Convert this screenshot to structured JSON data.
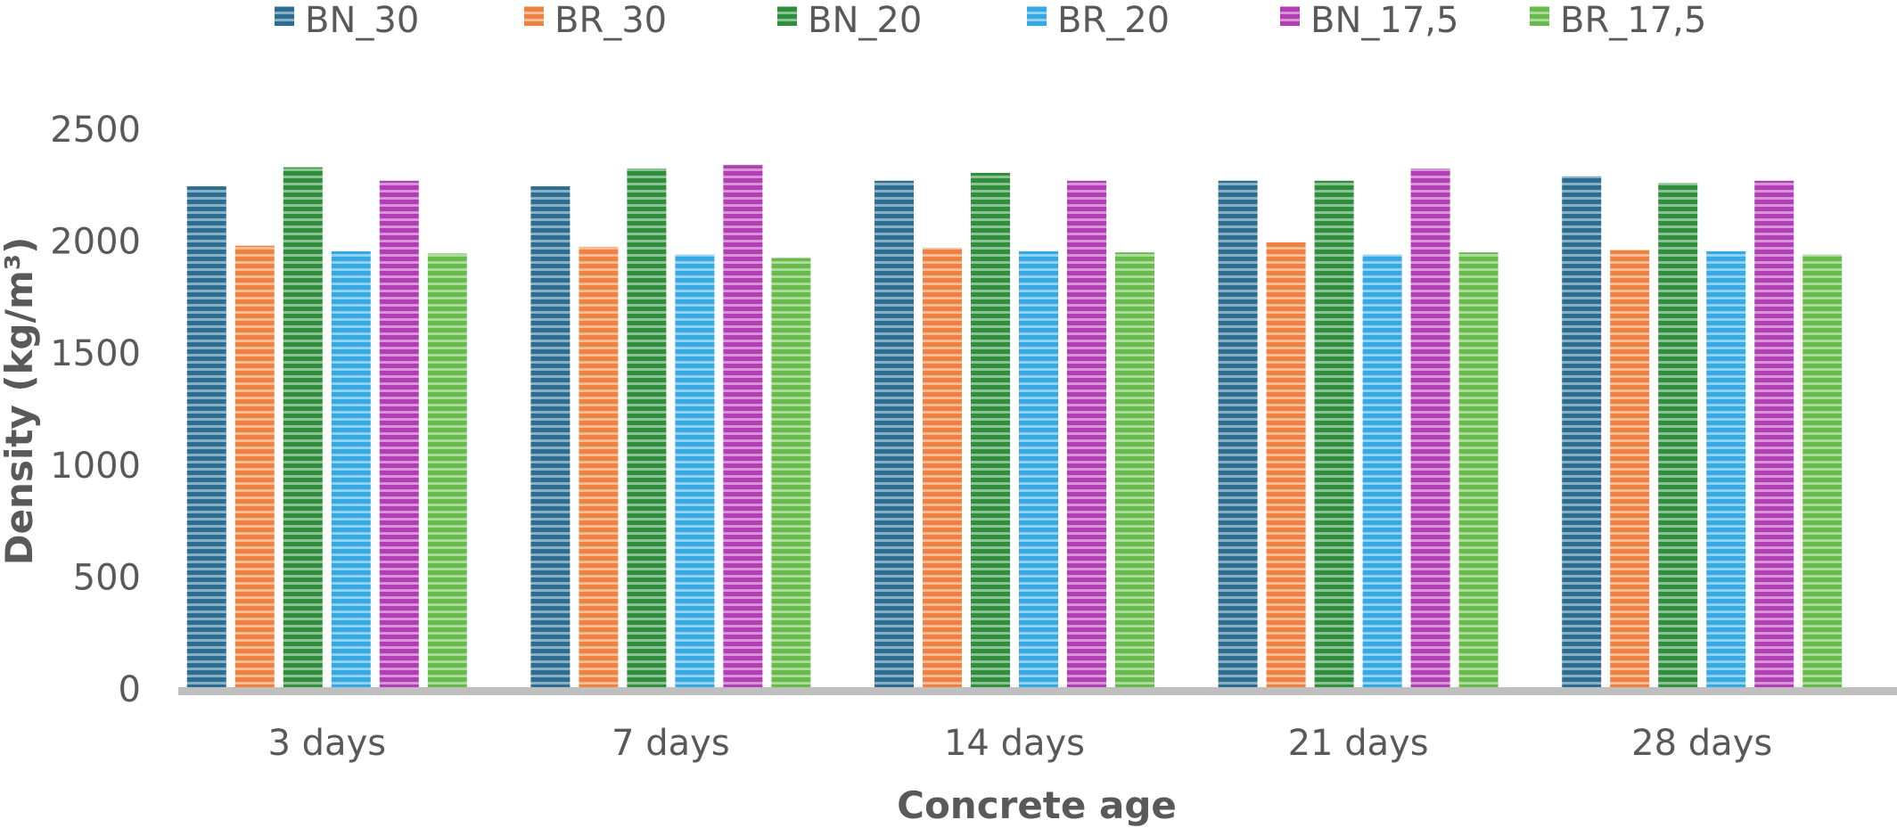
{
  "chart_data": {
    "type": "bar",
    "title": "",
    "xlabel": "Concrete age",
    "ylabel": "Density (kg/m³)",
    "ylim": [
      0,
      2500
    ],
    "yticks": [
      0,
      500,
      1000,
      1500,
      2000,
      2500
    ],
    "grid": false,
    "legend_position": "top",
    "categories": [
      "3 days",
      "7 days",
      "14 days",
      "21 days",
      "28 days"
    ],
    "series": [
      {
        "name": "BN_30",
        "color": "#2c6e91",
        "values": [
          2245,
          2245,
          2270,
          2270,
          2290
        ]
      },
      {
        "name": "BR_30",
        "color": "#ef8240",
        "values": [
          1980,
          1975,
          1970,
          1995,
          1960
        ]
      },
      {
        "name": "BN_20",
        "color": "#2f8f3c",
        "values": [
          2330,
          2325,
          2305,
          2270,
          2260
        ]
      },
      {
        "name": "BR_20",
        "color": "#35a9e4",
        "values": [
          1955,
          1940,
          1955,
          1940,
          1955
        ]
      },
      {
        "name": "BN_17,5",
        "color": "#b23db5",
        "values": [
          2270,
          2340,
          2270,
          2325,
          2270
        ]
      },
      {
        "name": "BR_17,5",
        "color": "#67bb4a",
        "values": [
          1945,
          1925,
          1950,
          1950,
          1940
        ]
      }
    ]
  }
}
